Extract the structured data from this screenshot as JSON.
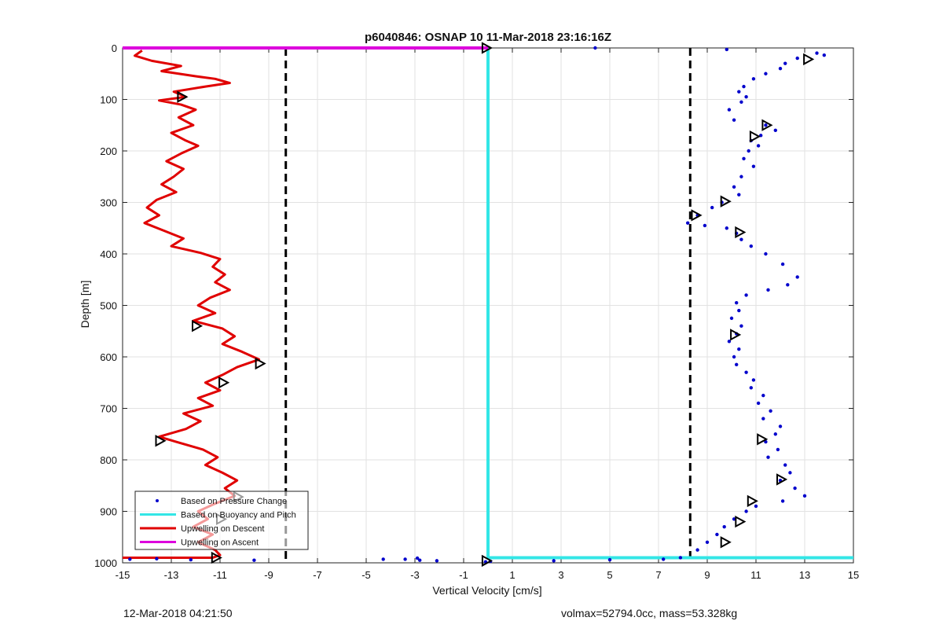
{
  "chart_data": {
    "type": "scatter",
    "title": "p6040846: OSNAP 10 11-Mar-2018 23:16:16Z",
    "xlabel": "Vertical Velocity [cm/s]",
    "ylabel": "Depth [m]",
    "xlim": [
      -15,
      15
    ],
    "ylim": [
      0,
      1000
    ],
    "y_reversed": true,
    "grid": true,
    "x_ticks": [
      -15,
      -13,
      -11,
      -9,
      -7,
      -5,
      -3,
      -1,
      1,
      3,
      5,
      7,
      9,
      11,
      13,
      15
    ],
    "y_ticks": [
      0,
      100,
      200,
      300,
      400,
      500,
      600,
      700,
      800,
      900,
      1000
    ],
    "x_tick_labels": [
      "-15",
      "-13",
      "-11",
      "-9",
      "-7",
      "-5",
      "-3",
      "-1",
      "1",
      "3",
      "5",
      "7",
      "9",
      "11",
      "13",
      "15"
    ],
    "y_tick_labels": [
      "0",
      "100",
      "200",
      "300",
      "400",
      "500",
      "600",
      "700",
      "800",
      "900",
      "1000"
    ],
    "legend_position": "bottom-left",
    "legend": [
      {
        "label": "Based on Pressure Change",
        "style": "marker",
        "color": "#0000cc"
      },
      {
        "label": "Based on Buoyancy and Pitch",
        "style": "line",
        "color": "#33e6e6"
      },
      {
        "label": "Upwelling on Descent",
        "style": "line",
        "color": "#e00000"
      },
      {
        "label": "Upwelling on Ascent",
        "style": "line",
        "color": "#dd00dd"
      }
    ],
    "thresholds": [
      -8.3,
      8.3
    ],
    "series": [
      {
        "name": "Based on Pressure Change",
        "kind": "scatter",
        "color": "#0000cc",
        "points": [
          [
            9.8,
            3
          ],
          [
            4.4,
            0
          ],
          [
            13.5,
            10
          ],
          [
            13.8,
            14
          ],
          [
            12.7,
            20
          ],
          [
            12.2,
            30
          ],
          [
            12.0,
            40
          ],
          [
            11.4,
            50
          ],
          [
            10.9,
            60
          ],
          [
            10.5,
            75
          ],
          [
            10.3,
            85
          ],
          [
            10.6,
            95
          ],
          [
            10.4,
            105
          ],
          [
            9.9,
            120
          ],
          [
            10.1,
            140
          ],
          [
            11.4,
            150
          ],
          [
            11.8,
            160
          ],
          [
            11.2,
            170
          ],
          [
            10.8,
            180
          ],
          [
            11.1,
            190
          ],
          [
            10.7,
            200
          ],
          [
            10.5,
            215
          ],
          [
            10.9,
            230
          ],
          [
            10.4,
            250
          ],
          [
            10.1,
            270
          ],
          [
            10.3,
            285
          ],
          [
            9.6,
            300
          ],
          [
            9.2,
            310
          ],
          [
            8.6,
            325
          ],
          [
            8.2,
            340
          ],
          [
            8.9,
            345
          ],
          [
            9.8,
            350
          ],
          [
            10.2,
            360
          ],
          [
            10.4,
            372
          ],
          [
            10.8,
            385
          ],
          [
            11.4,
            400
          ],
          [
            12.1,
            420
          ],
          [
            12.7,
            445
          ],
          [
            12.3,
            460
          ],
          [
            11.5,
            470
          ],
          [
            10.6,
            480
          ],
          [
            10.2,
            495
          ],
          [
            10.3,
            510
          ],
          [
            10.0,
            525
          ],
          [
            10.4,
            540
          ],
          [
            10.2,
            555
          ],
          [
            9.9,
            570
          ],
          [
            10.3,
            585
          ],
          [
            10.1,
            600
          ],
          [
            10.2,
            615
          ],
          [
            10.6,
            630
          ],
          [
            10.9,
            645
          ],
          [
            10.8,
            660
          ],
          [
            11.3,
            675
          ],
          [
            11.1,
            690
          ],
          [
            11.6,
            705
          ],
          [
            11.3,
            720
          ],
          [
            12.0,
            735
          ],
          [
            11.8,
            750
          ],
          [
            11.4,
            765
          ],
          [
            11.9,
            780
          ],
          [
            11.5,
            795
          ],
          [
            12.2,
            810
          ],
          [
            12.4,
            825
          ],
          [
            12.0,
            840
          ],
          [
            12.6,
            855
          ],
          [
            13.0,
            870
          ],
          [
            12.1,
            880
          ],
          [
            11.0,
            890
          ],
          [
            10.6,
            900
          ],
          [
            10.1,
            915
          ],
          [
            9.7,
            930
          ],
          [
            9.4,
            945
          ],
          [
            9.0,
            960
          ],
          [
            8.6,
            975
          ],
          [
            7.9,
            990
          ],
          [
            7.2,
            993
          ],
          [
            5.0,
            994
          ],
          [
            2.7,
            996
          ],
          [
            0.1,
            997
          ],
          [
            -0.1,
            998
          ],
          [
            -2.1,
            996
          ],
          [
            -2.8,
            995
          ],
          [
            -3.4,
            993
          ],
          [
            -2.9,
            991
          ],
          [
            -4.3,
            993
          ],
          [
            -9.6,
            995
          ],
          [
            -12.2,
            994
          ],
          [
            -13.6,
            992
          ],
          [
            -14.7,
            993
          ]
        ]
      },
      {
        "name": "Based on Buoyancy and Pitch",
        "kind": "line",
        "color": "#33e6e6",
        "points": [
          [
            0,
            0
          ],
          [
            0,
            990
          ],
          [
            15,
            990
          ]
        ]
      },
      {
        "name": "Upwelling on Descent",
        "kind": "line",
        "color": "#e00000",
        "points": [
          [
            -14.2,
            5
          ],
          [
            -14.5,
            15
          ],
          [
            -13.8,
            25
          ],
          [
            -12.6,
            35
          ],
          [
            -13.4,
            45
          ],
          [
            -12.0,
            55
          ],
          [
            -11.2,
            60
          ],
          [
            -10.6,
            68
          ],
          [
            -11.6,
            75
          ],
          [
            -12.9,
            85
          ],
          [
            -12.4,
            95
          ],
          [
            -13.5,
            102
          ],
          [
            -12.6,
            110
          ],
          [
            -12.0,
            120
          ],
          [
            -12.7,
            135
          ],
          [
            -12.1,
            150
          ],
          [
            -13.0,
            165
          ],
          [
            -12.4,
            180
          ],
          [
            -11.9,
            190
          ],
          [
            -12.6,
            205
          ],
          [
            -13.2,
            220
          ],
          [
            -12.5,
            235
          ],
          [
            -12.9,
            250
          ],
          [
            -13.4,
            265
          ],
          [
            -12.8,
            280
          ],
          [
            -13.6,
            295
          ],
          [
            -14.0,
            310
          ],
          [
            -13.5,
            325
          ],
          [
            -14.1,
            340
          ],
          [
            -13.3,
            355
          ],
          [
            -12.5,
            370
          ],
          [
            -13.0,
            385
          ],
          [
            -11.8,
            398
          ],
          [
            -11.0,
            410
          ],
          [
            -11.3,
            425
          ],
          [
            -10.8,
            440
          ],
          [
            -11.2,
            455
          ],
          [
            -10.6,
            470
          ],
          [
            -11.4,
            485
          ],
          [
            -11.9,
            500
          ],
          [
            -11.2,
            515
          ],
          [
            -12.1,
            530
          ],
          [
            -10.9,
            545
          ],
          [
            -10.4,
            560
          ],
          [
            -10.9,
            575
          ],
          [
            -10.1,
            590
          ],
          [
            -9.4,
            605
          ],
          [
            -10.3,
            620
          ],
          [
            -10.9,
            635
          ],
          [
            -11.6,
            650
          ],
          [
            -11.0,
            665
          ],
          [
            -11.9,
            680
          ],
          [
            -11.3,
            695
          ],
          [
            -12.5,
            710
          ],
          [
            -11.8,
            725
          ],
          [
            -12.4,
            740
          ],
          [
            -13.5,
            755
          ],
          [
            -12.8,
            765
          ],
          [
            -11.7,
            780
          ],
          [
            -11.1,
            795
          ],
          [
            -11.6,
            810
          ],
          [
            -10.9,
            825
          ],
          [
            -10.3,
            840
          ],
          [
            -10.8,
            855
          ],
          [
            -10.4,
            870
          ],
          [
            -11.2,
            885
          ],
          [
            -11.9,
            900
          ],
          [
            -11.5,
            915
          ],
          [
            -12.1,
            930
          ],
          [
            -11.3,
            945
          ],
          [
            -11.9,
            960
          ],
          [
            -11.2,
            975
          ],
          [
            -11.0,
            985
          ],
          [
            -11.3,
            990
          ],
          [
            -15.0,
            990
          ]
        ]
      },
      {
        "name": "Upwelling on Ascent",
        "kind": "line",
        "color": "#dd00dd",
        "points": [
          [
            -15,
            0
          ],
          [
            0,
            0
          ]
        ]
      },
      {
        "name": "",
        "kind": "markers",
        "marker": "triangle-right",
        "points": [
          [
            13.1,
            22
          ],
          [
            -12.6,
            95
          ],
          [
            11.4,
            150
          ],
          [
            10.9,
            172
          ],
          [
            9.7,
            298
          ],
          [
            8.5,
            325
          ],
          [
            10.3,
            358
          ],
          [
            -12.0,
            540
          ],
          [
            10.1,
            557
          ],
          [
            -9.4,
            613
          ],
          [
            -10.9,
            650
          ],
          [
            11.2,
            760
          ],
          [
            -13.5,
            763
          ],
          [
            12.0,
            838
          ],
          [
            -10.3,
            872
          ],
          [
            10.8,
            880
          ],
          [
            -11.0,
            915
          ],
          [
            10.3,
            920
          ],
          [
            9.7,
            960
          ],
          [
            -11.2,
            990
          ],
          [
            -0.1,
            0
          ],
          [
            -0.1,
            996
          ]
        ]
      }
    ]
  },
  "footer": {
    "left_text": "12-Mar-2018 04:21:50",
    "right_text": "volmax=52794.0cc, mass=53.328kg"
  }
}
